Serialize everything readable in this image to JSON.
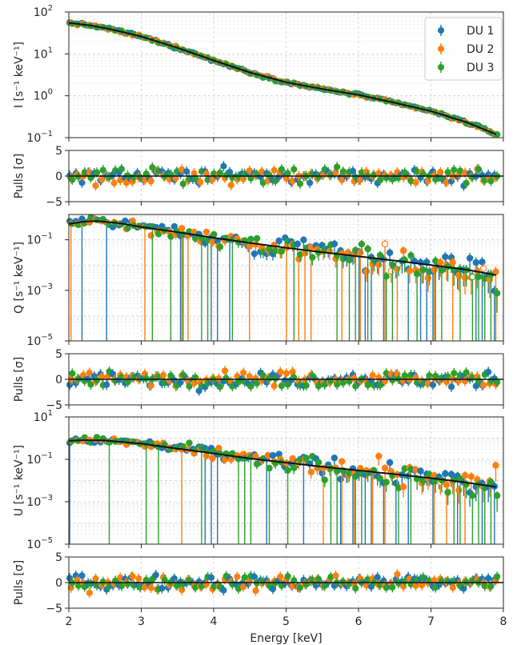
{
  "chart_data": {
    "type": "scatter",
    "layout": "stacked-panels",
    "x_label": "Energy [keV]",
    "x_range": [
      2,
      8
    ],
    "x_ticks": [
      "2",
      "3",
      "4",
      "5",
      "6",
      "7",
      "8"
    ],
    "legend": {
      "placement": "top-right of first panel",
      "entries": [
        {
          "name": "DU 1",
          "color": "#1f77b4"
        },
        {
          "name": "DU 2",
          "color": "#ff7f0e"
        },
        {
          "name": "DU 3",
          "color": "#2ca02c"
        }
      ]
    },
    "panels": [
      {
        "id": "I",
        "ylabel": "I [s⁻¹ keV⁻¹]",
        "scale": "log",
        "ylim": [
          0.1,
          100
        ],
        "yticks": [
          {
            "label": "10",
            "sup": "-1"
          },
          {
            "label": "10",
            "sup": "0"
          },
          {
            "label": "10",
            "sup": "1"
          },
          {
            "label": "10",
            "sup": "2"
          }
        ],
        "model": [
          [
            2.0,
            55
          ],
          [
            2.3,
            48
          ],
          [
            2.6,
            38
          ],
          [
            3.0,
            26
          ],
          [
            3.5,
            14
          ],
          [
            4.0,
            7
          ],
          [
            4.5,
            3.6
          ],
          [
            5.0,
            2.1
          ],
          [
            5.5,
            1.45
          ],
          [
            6.0,
            1.05
          ],
          [
            6.5,
            0.68
          ],
          [
            7.0,
            0.43
          ],
          [
            7.5,
            0.23
          ],
          [
            7.9,
            0.12
          ]
        ]
      },
      {
        "id": "I-pulls",
        "ylabel": "Pulls [σ]",
        "scale": "linear",
        "ylim": [
          -5,
          5
        ],
        "yticks": [
          "−5",
          "0",
          "5"
        ]
      },
      {
        "id": "Q",
        "ylabel": "Q [s⁻¹ keV⁻¹]",
        "scale": "log",
        "ylim": [
          1e-05,
          1
        ],
        "yticks": [
          {
            "label": "10",
            "sup": "-5"
          },
          {
            "label": "10",
            "sup": "-3"
          },
          {
            "label": "10",
            "sup": "-1"
          }
        ],
        "model": [
          [
            2.0,
            0.42
          ],
          [
            2.2,
            0.52
          ],
          [
            2.4,
            0.55
          ],
          [
            2.7,
            0.45
          ],
          [
            3.0,
            0.32
          ],
          [
            3.5,
            0.2
          ],
          [
            4.0,
            0.12
          ],
          [
            4.5,
            0.075
          ],
          [
            5.0,
            0.048
          ],
          [
            5.5,
            0.032
          ],
          [
            6.0,
            0.022
          ],
          [
            6.5,
            0.015
          ],
          [
            7.0,
            0.01
          ],
          [
            7.5,
            0.0065
          ],
          [
            7.9,
            0.004
          ]
        ]
      },
      {
        "id": "Q-pulls",
        "ylabel": "Pulls [σ]",
        "scale": "linear",
        "ylim": [
          -5,
          5
        ],
        "yticks": [
          "−5",
          "0",
          "5"
        ]
      },
      {
        "id": "U",
        "ylabel": "U [s⁻¹ keV⁻¹]",
        "scale": "log",
        "ylim": [
          1e-05,
          10
        ],
        "yticks": [
          {
            "label": "10",
            "sup": "-5"
          },
          {
            "label": "10",
            "sup": "-3"
          },
          {
            "label": "10",
            "sup": "-1"
          },
          {
            "label": "10",
            "sup": "1"
          }
        ],
        "model": [
          [
            2.0,
            0.75
          ],
          [
            2.2,
            0.8
          ],
          [
            2.5,
            0.78
          ],
          [
            3.0,
            0.55
          ],
          [
            3.5,
            0.32
          ],
          [
            4.0,
            0.19
          ],
          [
            4.5,
            0.11
          ],
          [
            5.0,
            0.07
          ],
          [
            5.5,
            0.045
          ],
          [
            6.0,
            0.03
          ],
          [
            6.5,
            0.02
          ],
          [
            7.0,
            0.013
          ],
          [
            7.5,
            0.008
          ],
          [
            7.9,
            0.005
          ]
        ]
      },
      {
        "id": "U-pulls",
        "ylabel": "Pulls [σ]",
        "scale": "linear",
        "ylim": [
          -5,
          5
        ],
        "yticks": [
          "−5",
          "0",
          "5"
        ]
      }
    ]
  }
}
